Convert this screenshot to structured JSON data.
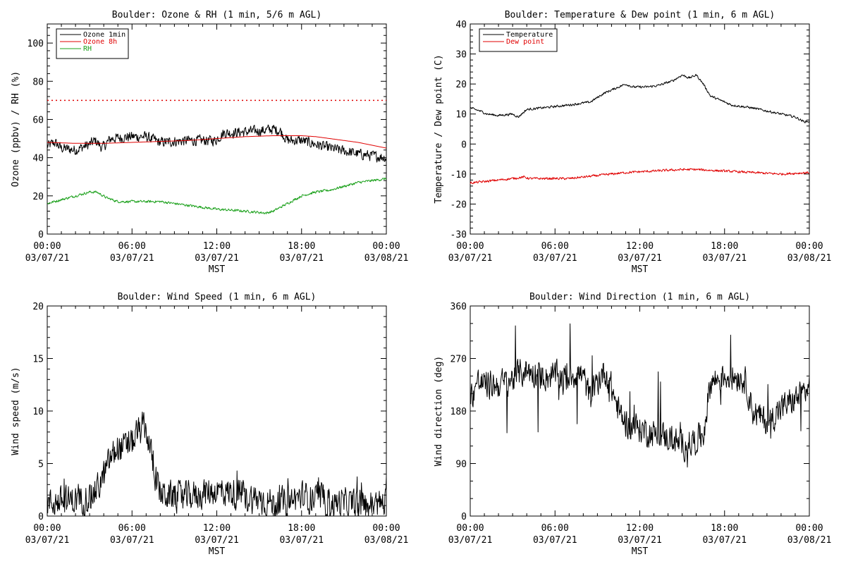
{
  "colors": {
    "black": "#000000",
    "red": "#e00000",
    "green": "#1aa01a"
  },
  "x_axis": {
    "label": "MST",
    "ticks": [
      {
        "time": "00:00",
        "date": "03/07/21"
      },
      {
        "time": "06:00",
        "date": "03/07/21"
      },
      {
        "time": "12:00",
        "date": "03/07/21"
      },
      {
        "time": "18:00",
        "date": "03/07/21"
      },
      {
        "time": "00:00",
        "date": "03/08/21"
      }
    ]
  },
  "chart_data": [
    {
      "type": "line",
      "title": "Boulder: Ozone & RH (1 min, 5/6 m AGL)",
      "ylabel": "Ozone (ppbv) / RH (%)",
      "xlabel": "MST",
      "x_unit": "hours since 03/07/21 00:00 MST",
      "ylim": [
        0,
        110
      ],
      "yticks": [
        0,
        20,
        40,
        60,
        80,
        100
      ],
      "legend_position": "top-left",
      "reference_line": {
        "value": 70,
        "style": "dotted",
        "color": "#e00000"
      },
      "series": [
        {
          "name": "Ozone 1min",
          "color": "#000000",
          "noise": 2.5,
          "x": [
            0,
            0.5,
            1,
            2,
            3,
            3.4,
            3.9,
            4.5,
            6,
            7,
            8,
            10,
            11,
            11.9,
            12.5,
            13,
            15,
            16,
            16.5,
            17,
            18,
            20,
            22,
            24
          ],
          "y": [
            46,
            48,
            45,
            44,
            47,
            49,
            45,
            50,
            51,
            51,
            48,
            49,
            49,
            49,
            53,
            53,
            54,
            55,
            54,
            49,
            49,
            45,
            42,
            40
          ]
        },
        {
          "name": "Ozone 8h",
          "color": "#e00000",
          "noise": 0,
          "x": [
            0,
            2,
            4,
            6,
            8,
            10,
            12,
            14,
            16,
            18,
            19,
            20,
            22,
            24
          ],
          "y": [
            48,
            47.5,
            47.5,
            48,
            48.5,
            49,
            50,
            51,
            51.5,
            51.5,
            51,
            50,
            48,
            45
          ]
        },
        {
          "name": "RH",
          "color": "#1aa01a",
          "noise": 0.6,
          "x": [
            0,
            1,
            2,
            3,
            3.5,
            4.2,
            5,
            8,
            10,
            12,
            14,
            15.5,
            16,
            17,
            18,
            19,
            20,
            21,
            22,
            23,
            24
          ],
          "y": [
            16,
            18,
            20,
            22,
            22,
            19,
            17,
            17,
            15,
            13,
            12,
            11,
            12,
            16,
            20,
            22,
            23,
            25,
            27,
            28,
            29
          ]
        }
      ]
    },
    {
      "type": "line",
      "title": "Boulder: Temperature & Dew point (1 min, 6 m AGL)",
      "ylabel": "Temperature / Dew point (C)",
      "xlabel": "MST",
      "x_unit": "hours since 03/07/21 00:00 MST",
      "ylim": [
        -30,
        40
      ],
      "yticks": [
        -30,
        -20,
        -10,
        0,
        10,
        20,
        30,
        40
      ],
      "legend_position": "top-left",
      "series": [
        {
          "name": "Temperature",
          "color": "#000000",
          "noise": 0.35,
          "x": [
            0,
            0.7,
            1.2,
            2,
            3,
            3.4,
            4,
            5,
            7,
            8.5,
            9.5,
            10.5,
            11,
            11.5,
            12.5,
            13.3,
            14.3,
            15,
            15.5,
            16,
            16.5,
            17,
            18.5,
            20,
            22,
            23,
            23.6,
            24
          ],
          "y": [
            12,
            11,
            10,
            9.5,
            10,
            9,
            11.5,
            12,
            13,
            14,
            17,
            19,
            20,
            19,
            19,
            19.5,
            21,
            23,
            22,
            23,
            20,
            16,
            13,
            12,
            10,
            9,
            7.5,
            7.5
          ]
        },
        {
          "name": "Dew point",
          "color": "#e00000",
          "noise": 0.35,
          "x": [
            0,
            1,
            2,
            3,
            3.8,
            4.2,
            5,
            7,
            9,
            11,
            13,
            15,
            16,
            18,
            20,
            22,
            24
          ],
          "y": [
            -13,
            -12.5,
            -12,
            -11.5,
            -11,
            -11.5,
            -11.5,
            -11.5,
            -10.5,
            -9.5,
            -9,
            -8.5,
            -8.5,
            -9,
            -9.5,
            -10,
            -9.5
          ]
        }
      ]
    },
    {
      "type": "line",
      "title": "Boulder: Wind Speed (1 min, 6 m AGL)",
      "ylabel": "Wind speed (m/s)",
      "xlabel": "MST",
      "x_unit": "hours since 03/07/21 00:00 MST",
      "ylim": [
        0,
        20
      ],
      "yticks": [
        0,
        5,
        10,
        15,
        20
      ],
      "series": [
        {
          "name": "",
          "color": "#000000",
          "noise": 1.3,
          "x": [
            0,
            1,
            2,
            3,
            3.5,
            4,
            4.5,
            5,
            5.5,
            6,
            6.5,
            6.9,
            7.2,
            7.6,
            8,
            9,
            10,
            11,
            12,
            13,
            14,
            15,
            16,
            17,
            18,
            19,
            20,
            21,
            22,
            23,
            24
          ],
          "y": [
            1.2,
            1.4,
            1.5,
            1.8,
            2.5,
            3.8,
            5.5,
            6.5,
            6.5,
            7,
            8,
            8.5,
            7,
            4,
            2.2,
            1.8,
            1.8,
            2.2,
            2.4,
            2.2,
            1.8,
            1.6,
            1.2,
            1.3,
            1.9,
            1.6,
            1.2,
            1.2,
            1.1,
            1.1,
            1.2
          ]
        }
      ]
    },
    {
      "type": "line",
      "title": "Boulder: Wind Direction (1 min, 6 m AGL)",
      "ylabel": "Wind direction (deg)",
      "xlabel": "MST",
      "x_unit": "hours since 03/07/21 00:00 MST",
      "ylim": [
        0,
        360
      ],
      "yticks": [
        0,
        90,
        180,
        270,
        360
      ],
      "series": [
        {
          "name": "",
          "color": "#000000",
          "noise": 22,
          "x": [
            0,
            0.5,
            1,
            2,
            3,
            3.5,
            4,
            5,
            6,
            7,
            7.5,
            8,
            8.5,
            9,
            9.5,
            10,
            10.5,
            11,
            12,
            13,
            14,
            15,
            16,
            16.5,
            17,
            17.5,
            18,
            19,
            19.5,
            20,
            21,
            22,
            23,
            24
          ],
          "y": [
            200,
            230,
            225,
            225,
            235,
            245,
            250,
            240,
            240,
            240,
            245,
            240,
            200,
            230,
            250,
            220,
            180,
            160,
            150,
            140,
            135,
            120,
            130,
            140,
            230,
            235,
            240,
            240,
            230,
            180,
            160,
            185,
            200,
            220
          ]
        }
      ]
    }
  ]
}
